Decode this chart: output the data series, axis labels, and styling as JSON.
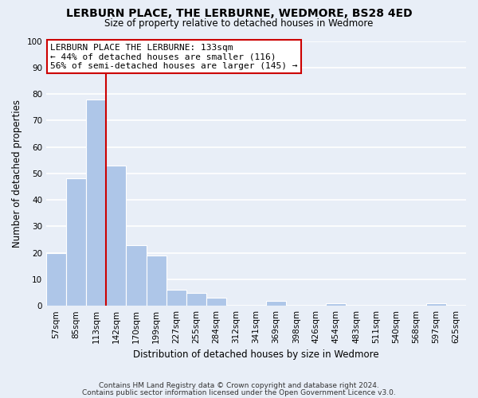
{
  "title": "LERBURN PLACE, THE LERBURNE, WEDMORE, BS28 4ED",
  "subtitle": "Size of property relative to detached houses in Wedmore",
  "xlabel": "Distribution of detached houses by size in Wedmore",
  "ylabel": "Number of detached properties",
  "bin_labels": [
    "57sqm",
    "85sqm",
    "113sqm",
    "142sqm",
    "170sqm",
    "199sqm",
    "227sqm",
    "255sqm",
    "284sqm",
    "312sqm",
    "341sqm",
    "369sqm",
    "398sqm",
    "426sqm",
    "454sqm",
    "483sqm",
    "511sqm",
    "540sqm",
    "568sqm",
    "597sqm",
    "625sqm"
  ],
  "bar_values": [
    20,
    48,
    78,
    53,
    23,
    19,
    6,
    5,
    3,
    0,
    0,
    2,
    0,
    0,
    1,
    0,
    0,
    0,
    0,
    1,
    0
  ],
  "bar_color": "#aec6e8",
  "bar_edge_color": "#aec6e8",
  "vline_color": "#cc0000",
  "vline_position": 2.5,
  "ylim": [
    0,
    100
  ],
  "yticks": [
    0,
    10,
    20,
    30,
    40,
    50,
    60,
    70,
    80,
    90,
    100
  ],
  "annotation_box_text": "LERBURN PLACE THE LERBURNE: 133sqm\n← 44% of detached houses are smaller (116)\n56% of semi-detached houses are larger (145) →",
  "annotation_box_color": "#ffffff",
  "annotation_box_edge_color": "#cc0000",
  "footer_line1": "Contains HM Land Registry data © Crown copyright and database right 2024.",
  "footer_line2": "Contains public sector information licensed under the Open Government Licence v3.0.",
  "background_color": "#e8eef7",
  "grid_color": "#ffffff",
  "title_fontsize": 10,
  "subtitle_fontsize": 8.5,
  "axis_label_fontsize": 8.5,
  "tick_fontsize": 7.5,
  "annotation_fontsize": 8,
  "footer_fontsize": 6.5
}
